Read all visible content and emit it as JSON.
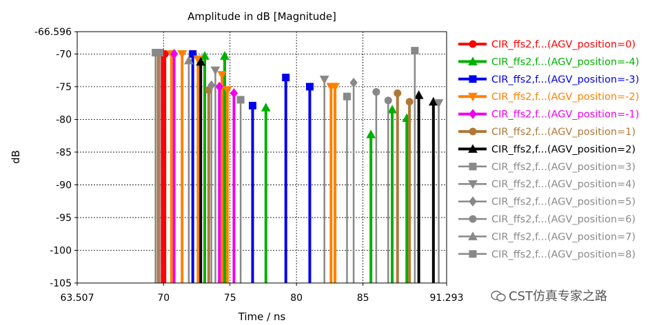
{
  "chart_data": {
    "type": "stem",
    "title": "Amplitude in dB [Magnitude]",
    "xlabel": "Time / ns",
    "ylabel": "dB",
    "xlim": [
      63.507,
      91.293
    ],
    "ylim": [
      -105,
      -66.596
    ],
    "x_ticks": [
      "63.507",
      "70",
      "75",
      "80",
      "85",
      "91.293"
    ],
    "x_tick_values": [
      63.507,
      70,
      75,
      80,
      85,
      91.293
    ],
    "y_ticks": [
      "-66.596",
      "-70",
      "-75",
      "-80",
      "-85",
      "-90",
      "-95",
      "-100",
      "-105"
    ],
    "y_tick_values": [
      -66.596,
      -70,
      -75,
      -80,
      -85,
      -90,
      -95,
      -100,
      -105
    ],
    "grid": true,
    "legend_position": "right",
    "series": [
      {
        "name": "CIR_ffs2,f...(AGV_position=0)",
        "color": "#ff0000",
        "marker": "circle",
        "bold": true,
        "points": [
          [
            69.9,
            -69.9
          ],
          [
            70.1,
            -70.0
          ]
        ]
      },
      {
        "name": "CIR_ffs2,f...(AGV_position=-4)",
        "color": "#00b000",
        "marker": "triangle-up",
        "bold": true,
        "points": [
          [
            73.1,
            -70.3
          ],
          [
            74.6,
            -70.3
          ],
          [
            77.7,
            -78.2
          ],
          [
            85.6,
            -82.3
          ],
          [
            87.2,
            -78.5
          ],
          [
            88.3,
            -79.8
          ]
        ]
      },
      {
        "name": "CIR_ffs2,f...(AGV_position=-3)",
        "color": "#0000ee",
        "marker": "square",
        "bold": true,
        "points": [
          [
            72.2,
            -70.0
          ],
          [
            76.7,
            -77.9
          ],
          [
            79.2,
            -73.6
          ],
          [
            81.0,
            -75.0
          ]
        ]
      },
      {
        "name": "CIR_ffs2,f...(AGV_position=-2)",
        "color": "#ff8000",
        "marker": "triangle-down",
        "bold": true,
        "points": [
          [
            70.6,
            -70.0
          ],
          [
            71.4,
            -70.0
          ],
          [
            72.6,
            -70.8
          ],
          [
            74.4,
            -73.2
          ],
          [
            74.8,
            -75.5
          ],
          [
            82.6,
            -75.0
          ],
          [
            82.9,
            -75.0
          ]
        ]
      },
      {
        "name": "CIR_ffs2,f...(AGV_position=-1)",
        "color": "#ee00ee",
        "marker": "diamond",
        "bold": true,
        "points": [
          [
            70.8,
            -70.0
          ],
          [
            74.2,
            -75.0
          ],
          [
            75.3,
            -76.0
          ]
        ]
      },
      {
        "name": "CIR_ffs2,f...(AGV_position=1)",
        "color": "#b07838",
        "marker": "circle",
        "bold": true,
        "points": [
          [
            69.6,
            -69.8
          ],
          [
            73.4,
            -75.5
          ],
          [
            87.6,
            -76.0
          ],
          [
            88.5,
            -77.3
          ]
        ]
      },
      {
        "name": "CIR_ffs2,f...(AGV_position=2)",
        "color": "#000000",
        "marker": "triangle-up",
        "bold": true,
        "points": [
          [
            72.8,
            -71.2
          ],
          [
            89.2,
            -76.3
          ],
          [
            90.3,
            -77.3
          ]
        ]
      },
      {
        "name": "CIR_ffs2,f...(AGV_position=3)",
        "color": "#888888",
        "marker": "square",
        "bold": false,
        "points": [
          [
            69.4,
            -69.8
          ],
          [
            75.8,
            -77.0
          ],
          [
            83.8,
            -76.5
          ],
          [
            88.9,
            -69.5
          ]
        ]
      },
      {
        "name": "CIR_ffs2,f...(AGV_position=4)",
        "color": "#888888",
        "marker": "triangle-down",
        "bold": false,
        "points": [
          [
            73.9,
            -72.5
          ],
          [
            82.1,
            -73.9
          ],
          [
            90.7,
            -77.5
          ]
        ]
      },
      {
        "name": "CIR_ffs2,f...(AGV_position=5)",
        "color": "#888888",
        "marker": "diamond",
        "bold": false,
        "points": [
          [
            73.6,
            -74.8
          ],
          [
            84.3,
            -74.4
          ]
        ]
      },
      {
        "name": "CIR_ffs2,f...(AGV_position=6)",
        "color": "#888888",
        "marker": "circle",
        "bold": false,
        "points": [
          [
            86.0,
            -75.8
          ],
          [
            86.9,
            -77.1
          ]
        ]
      },
      {
        "name": "CIR_ffs2,f...(AGV_position=7)",
        "color": "#888888",
        "marker": "triangle-up",
        "bold": false,
        "points": [
          [
            71.9,
            -71.0
          ]
        ]
      },
      {
        "name": "CIR_ffs2,f...(AGV_position=8)",
        "color": "#888888",
        "marker": "square",
        "bold": false,
        "points": [
          [
            69.7,
            -69.8
          ]
        ]
      }
    ]
  },
  "watermark": {
    "text": "CST仿真专家之路"
  }
}
